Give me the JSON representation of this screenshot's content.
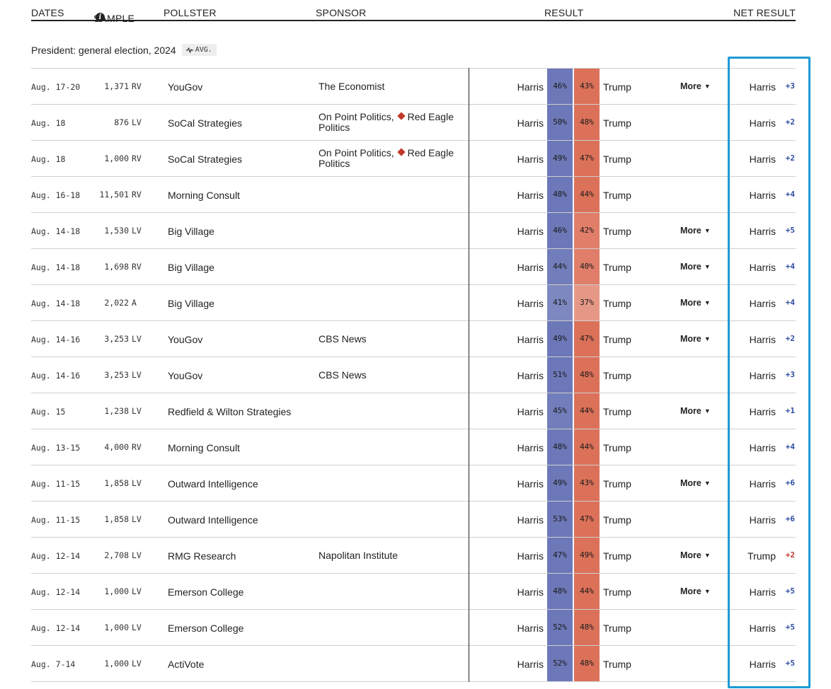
{
  "header": {
    "dates": "DATES",
    "sample": "SAMPLE",
    "info_glyph": "i",
    "pollster": "POLLSTER",
    "sponsor": "SPONSOR",
    "result": "RESULT",
    "net_result": "NET RESULT"
  },
  "section": {
    "title": "President: general election, 2024",
    "avg_label": "AVG."
  },
  "colors": {
    "harris_blue": "#6d78b8",
    "trump_red": "#dc7159",
    "dem_margin": "#2b4ca0",
    "rep_margin": "#c0392b",
    "highlight_box": "#1e9ad6"
  },
  "more_label": "More",
  "rows": [
    {
      "date": "Aug. 17-20",
      "sample": "1,371",
      "sample_type": "RV",
      "pollster": "YouGov",
      "sponsor": [
        "The Economist"
      ],
      "sponsor_marks": [
        false
      ],
      "dem": "Harris",
      "dem_pct": "46%",
      "rep": "Trump",
      "rep_pct": "43%",
      "more": true,
      "net_leader": "Harris",
      "net_margin": "+3",
      "net_party": "dem"
    },
    {
      "date": "Aug. 18",
      "sample": "876",
      "sample_type": "LV",
      "pollster": "SoCal Strategies",
      "sponsor": [
        "On Point Politics,",
        "Red Eagle Politics"
      ],
      "sponsor_marks": [
        false,
        true
      ],
      "dem": "Harris",
      "dem_pct": "50%",
      "rep": "Trump",
      "rep_pct": "48%",
      "more": false,
      "net_leader": "Harris",
      "net_margin": "+2",
      "net_party": "dem"
    },
    {
      "date": "Aug. 18",
      "sample": "1,000",
      "sample_type": "RV",
      "pollster": "SoCal Strategies",
      "sponsor": [
        "On Point Politics,",
        "Red Eagle Politics"
      ],
      "sponsor_marks": [
        false,
        true
      ],
      "dem": "Harris",
      "dem_pct": "49%",
      "rep": "Trump",
      "rep_pct": "47%",
      "more": false,
      "net_leader": "Harris",
      "net_margin": "+2",
      "net_party": "dem"
    },
    {
      "date": "Aug. 16-18",
      "sample": "11,501",
      "sample_type": "RV",
      "pollster": "Morning Consult",
      "sponsor": [],
      "sponsor_marks": [],
      "dem": "Harris",
      "dem_pct": "48%",
      "rep": "Trump",
      "rep_pct": "44%",
      "more": false,
      "net_leader": "Harris",
      "net_margin": "+4",
      "net_party": "dem"
    },
    {
      "date": "Aug. 14-18",
      "sample": "1,530",
      "sample_type": "LV",
      "pollster": "Big Village",
      "sponsor": [],
      "sponsor_marks": [],
      "dem": "Harris",
      "dem_pct": "46%",
      "rep": "Trump",
      "rep_pct": "42%",
      "more": true,
      "net_leader": "Harris",
      "net_margin": "+5",
      "net_party": "dem"
    },
    {
      "date": "Aug. 14-18",
      "sample": "1,698",
      "sample_type": "RV",
      "pollster": "Big Village",
      "sponsor": [],
      "sponsor_marks": [],
      "dem": "Harris",
      "dem_pct": "44%",
      "rep": "Trump",
      "rep_pct": "40%",
      "more": true,
      "net_leader": "Harris",
      "net_margin": "+4",
      "net_party": "dem"
    },
    {
      "date": "Aug. 14-18",
      "sample": "2,022",
      "sample_type": "A",
      "pollster": "Big Village",
      "sponsor": [],
      "sponsor_marks": [],
      "dem": "Harris",
      "dem_pct": "41%",
      "rep": "Trump",
      "rep_pct": "37%",
      "more": true,
      "net_leader": "Harris",
      "net_margin": "+4",
      "net_party": "dem"
    },
    {
      "date": "Aug. 14-16",
      "sample": "3,253",
      "sample_type": "LV",
      "pollster": "YouGov",
      "sponsor": [
        "CBS News"
      ],
      "sponsor_marks": [
        false
      ],
      "dem": "Harris",
      "dem_pct": "49%",
      "rep": "Trump",
      "rep_pct": "47%",
      "more": true,
      "net_leader": "Harris",
      "net_margin": "+2",
      "net_party": "dem"
    },
    {
      "date": "Aug. 14-16",
      "sample": "3,253",
      "sample_type": "LV",
      "pollster": "YouGov",
      "sponsor": [
        "CBS News"
      ],
      "sponsor_marks": [
        false
      ],
      "dem": "Harris",
      "dem_pct": "51%",
      "rep": "Trump",
      "rep_pct": "48%",
      "more": false,
      "net_leader": "Harris",
      "net_margin": "+3",
      "net_party": "dem"
    },
    {
      "date": "Aug. 15",
      "sample": "1,238",
      "sample_type": "LV",
      "pollster": "Redfield & Wilton Strategies",
      "sponsor": [],
      "sponsor_marks": [],
      "dem": "Harris",
      "dem_pct": "45%",
      "rep": "Trump",
      "rep_pct": "44%",
      "more": true,
      "net_leader": "Harris",
      "net_margin": "+1",
      "net_party": "dem"
    },
    {
      "date": "Aug. 13-15",
      "sample": "4,000",
      "sample_type": "RV",
      "pollster": "Morning Consult",
      "sponsor": [],
      "sponsor_marks": [],
      "dem": "Harris",
      "dem_pct": "48%",
      "rep": "Trump",
      "rep_pct": "44%",
      "more": false,
      "net_leader": "Harris",
      "net_margin": "+4",
      "net_party": "dem"
    },
    {
      "date": "Aug. 11-15",
      "sample": "1,858",
      "sample_type": "LV",
      "pollster": "Outward Intelligence",
      "sponsor": [],
      "sponsor_marks": [],
      "dem": "Harris",
      "dem_pct": "49%",
      "rep": "Trump",
      "rep_pct": "43%",
      "more": true,
      "net_leader": "Harris",
      "net_margin": "+6",
      "net_party": "dem"
    },
    {
      "date": "Aug. 11-15",
      "sample": "1,858",
      "sample_type": "LV",
      "pollster": "Outward Intelligence",
      "sponsor": [],
      "sponsor_marks": [],
      "dem": "Harris",
      "dem_pct": "53%",
      "rep": "Trump",
      "rep_pct": "47%",
      "more": false,
      "net_leader": "Harris",
      "net_margin": "+6",
      "net_party": "dem"
    },
    {
      "date": "Aug. 12-14",
      "sample": "2,708",
      "sample_type": "LV",
      "pollster": "RMG Research",
      "sponsor": [
        "Napolitan Institute"
      ],
      "sponsor_marks": [
        false
      ],
      "dem": "Harris",
      "dem_pct": "47%",
      "rep": "Trump",
      "rep_pct": "49%",
      "more": true,
      "net_leader": "Trump",
      "net_margin": "+2",
      "net_party": "rep"
    },
    {
      "date": "Aug. 12-14",
      "sample": "1,000",
      "sample_type": "LV",
      "pollster": "Emerson College",
      "sponsor": [],
      "sponsor_marks": [],
      "dem": "Harris",
      "dem_pct": "48%",
      "rep": "Trump",
      "rep_pct": "44%",
      "more": true,
      "net_leader": "Harris",
      "net_margin": "+5",
      "net_party": "dem"
    },
    {
      "date": "Aug. 12-14",
      "sample": "1,000",
      "sample_type": "LV",
      "pollster": "Emerson College",
      "sponsor": [],
      "sponsor_marks": [],
      "dem": "Harris",
      "dem_pct": "52%",
      "rep": "Trump",
      "rep_pct": "48%",
      "more": false,
      "net_leader": "Harris",
      "net_margin": "+5",
      "net_party": "dem"
    },
    {
      "date": "Aug. 7-14",
      "sample": "1,000",
      "sample_type": "LV",
      "pollster": "ActiVote",
      "sponsor": [],
      "sponsor_marks": [],
      "dem": "Harris",
      "dem_pct": "52%",
      "rep": "Trump",
      "rep_pct": "48%",
      "more": false,
      "net_leader": "Harris",
      "net_margin": "+5",
      "net_party": "dem"
    }
  ]
}
